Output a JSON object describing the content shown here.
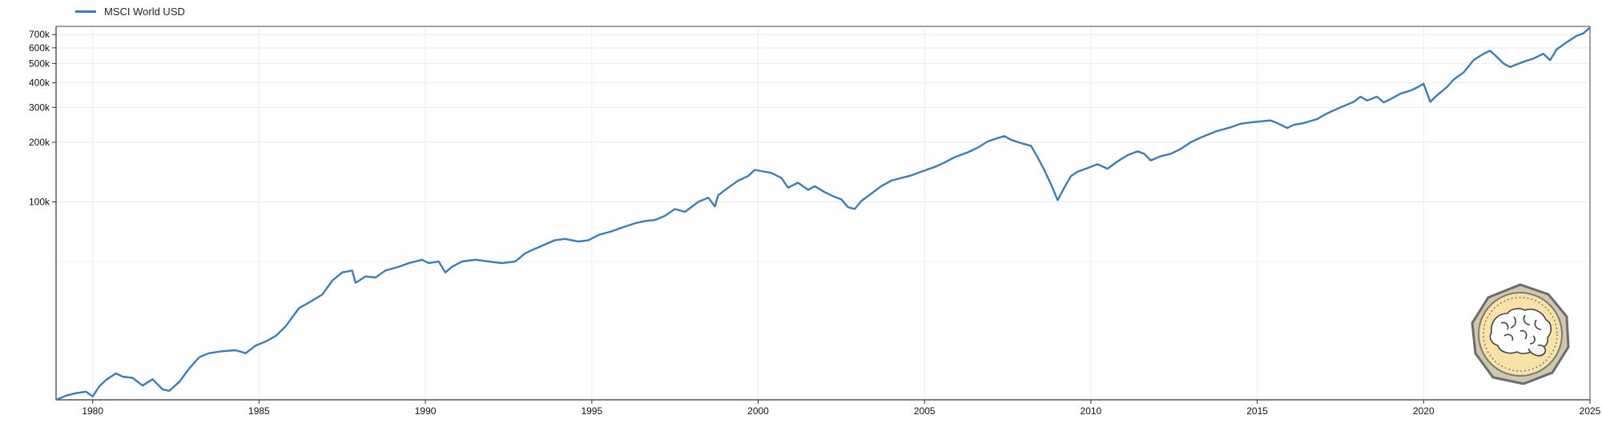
{
  "chart_data": {
    "type": "line",
    "title": "",
    "xlabel": "",
    "ylabel": "",
    "y_scale": "log",
    "grid": true,
    "legend": "top-left",
    "x_ticks": [
      "1980",
      "1985",
      "1990",
      "1995",
      "2000",
      "2005",
      "2010",
      "2015",
      "2020",
      "2025"
    ],
    "y_ticks": [
      {
        "value": 100000,
        "label": "100k"
      },
      {
        "value": 200000,
        "label": "200k"
      },
      {
        "value": 300000,
        "label": "300k"
      },
      {
        "value": 400000,
        "label": "400k"
      },
      {
        "value": 500000,
        "label": "500k"
      },
      {
        "value": 600000,
        "label": "600k"
      },
      {
        "value": 700000,
        "label": "700k"
      }
    ],
    "xlim": [
      1978.9,
      2025.0
    ],
    "ylim": [
      10000,
      770000
    ],
    "series": [
      {
        "name": "MSCI World USD",
        "color": "#3b7db5",
        "x": [
          1978.9,
          1979.2,
          1979.5,
          1979.8,
          1980.0,
          1980.2,
          1980.4,
          1980.7,
          1980.9,
          1981.2,
          1981.5,
          1981.8,
          1982.1,
          1982.3,
          1982.6,
          1982.9,
          1983.2,
          1983.5,
          1983.9,
          1984.3,
          1984.6,
          1984.9,
          1985.2,
          1985.5,
          1985.8,
          1986.2,
          1986.5,
          1986.9,
          1987.2,
          1987.5,
          1987.8,
          1987.9,
          1988.2,
          1988.5,
          1988.8,
          1989.2,
          1989.5,
          1989.9,
          1990.1,
          1990.4,
          1990.6,
          1990.8,
          1991.1,
          1991.5,
          1991.9,
          1992.3,
          1992.7,
          1993.0,
          1993.3,
          1993.6,
          1993.9,
          1994.2,
          1994.6,
          1994.9,
          1995.2,
          1995.6,
          1995.9,
          1996.3,
          1996.6,
          1996.9,
          1997.2,
          1997.5,
          1997.8,
          1998.2,
          1998.5,
          1998.7,
          1998.8,
          1999.1,
          1999.4,
          1999.7,
          1999.9,
          2000.1,
          2000.4,
          2000.7,
          2000.9,
          2001.2,
          2001.5,
          2001.7,
          2002.0,
          2002.3,
          2002.5,
          2002.7,
          2002.9,
          2003.1,
          2003.4,
          2003.7,
          2004.0,
          2004.3,
          2004.6,
          2004.9,
          2005.3,
          2005.6,
          2005.9,
          2006.3,
          2006.6,
          2006.9,
          2007.2,
          2007.4,
          2007.6,
          2007.9,
          2008.2,
          2008.4,
          2008.6,
          2008.8,
          2009.0,
          2009.2,
          2009.4,
          2009.6,
          2009.9,
          2010.2,
          2010.5,
          2010.8,
          2011.1,
          2011.4,
          2011.6,
          2011.8,
          2012.1,
          2012.4,
          2012.7,
          2013.0,
          2013.4,
          2013.8,
          2014.2,
          2014.5,
          2014.8,
          2015.1,
          2015.4,
          2015.6,
          2015.9,
          2016.1,
          2016.4,
          2016.8,
          2017.1,
          2017.5,
          2017.9,
          2018.1,
          2018.3,
          2018.6,
          2018.8,
          2019.0,
          2019.3,
          2019.6,
          2019.8,
          2020.0,
          2020.2,
          2020.4,
          2020.7,
          2020.9,
          2021.2,
          2021.5,
          2021.8,
          2022.0,
          2022.2,
          2022.4,
          2022.6,
          2022.8,
          2023.0,
          2023.3,
          2023.6,
          2023.8,
          2024.0,
          2024.3,
          2024.6,
          2024.8,
          2025.0
        ],
        "values": [
          10000,
          10500,
          10800,
          11000,
          10400,
          11700,
          12600,
          13600,
          13100,
          12900,
          11800,
          12700,
          11300,
          11100,
          12300,
          14400,
          16400,
          17200,
          17600,
          17800,
          17200,
          18800,
          19700,
          21000,
          23500,
          29000,
          31000,
          34000,
          40000,
          44000,
          45000,
          39000,
          42000,
          41500,
          45000,
          47000,
          49000,
          51000,
          49000,
          50000,
          44000,
          47000,
          50000,
          51000,
          50000,
          49000,
          50000,
          55000,
          58000,
          61000,
          64000,
          65000,
          63000,
          64000,
          68000,
          71000,
          74000,
          78000,
          80000,
          81000,
          85000,
          92000,
          89000,
          100000,
          105000,
          95000,
          108000,
          118000,
          128000,
          135000,
          145000,
          143000,
          140000,
          132000,
          118000,
          125000,
          115000,
          120000,
          112000,
          106000,
          103000,
          94000,
          92000,
          101000,
          110000,
          120000,
          128000,
          132000,
          136000,
          142000,
          150000,
          158000,
          168000,
          178000,
          188000,
          202000,
          210000,
          215000,
          206000,
          198000,
          192000,
          168000,
          145000,
          123000,
          102000,
          118000,
          135000,
          142000,
          148000,
          155000,
          147000,
          160000,
          172000,
          180000,
          175000,
          162000,
          170000,
          175000,
          185000,
          200000,
          215000,
          228000,
          238000,
          248000,
          252000,
          255000,
          258000,
          250000,
          236000,
          245000,
          250000,
          262000,
          280000,
          300000,
          320000,
          340000,
          325000,
          340000,
          318000,
          330000,
          352000,
          365000,
          378000,
          395000,
          320000,
          345000,
          380000,
          415000,
          450000,
          520000,
          560000,
          580000,
          540000,
          500000,
          480000,
          495000,
          510000,
          530000,
          560000,
          520000,
          590000,
          640000,
          690000,
          710000,
          760000
        ]
      }
    ]
  },
  "legend": {
    "label": "MSCI World USD"
  }
}
